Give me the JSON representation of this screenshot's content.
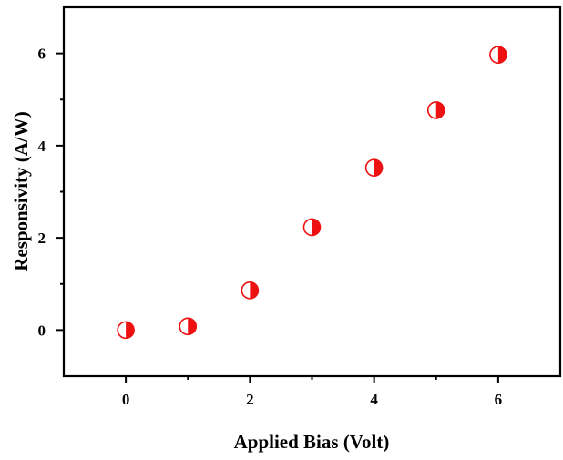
{
  "chart_data": {
    "type": "scatter",
    "title": "",
    "xlabel": "Applied Bias (Volt)",
    "ylabel": "Responsivity (A/W)",
    "xlim": [
      -1,
      7
    ],
    "ylim": [
      -1,
      7
    ],
    "xticks": [
      0,
      2,
      4,
      6
    ],
    "yticks": [
      0,
      2,
      4,
      6
    ],
    "x_tick_labels": [
      "0",
      "2",
      "4",
      "6"
    ],
    "y_tick_labels": [
      "0",
      "2",
      "4",
      "6"
    ],
    "grid": false,
    "legend": "none",
    "marker": "half-filled-circle",
    "marker_color": "#ee1111",
    "series": [
      {
        "x": [
          0,
          1,
          2,
          3,
          4,
          5,
          6
        ],
        "y": [
          0.0,
          0.08,
          0.86,
          2.23,
          3.52,
          4.77,
          5.97
        ]
      }
    ]
  }
}
